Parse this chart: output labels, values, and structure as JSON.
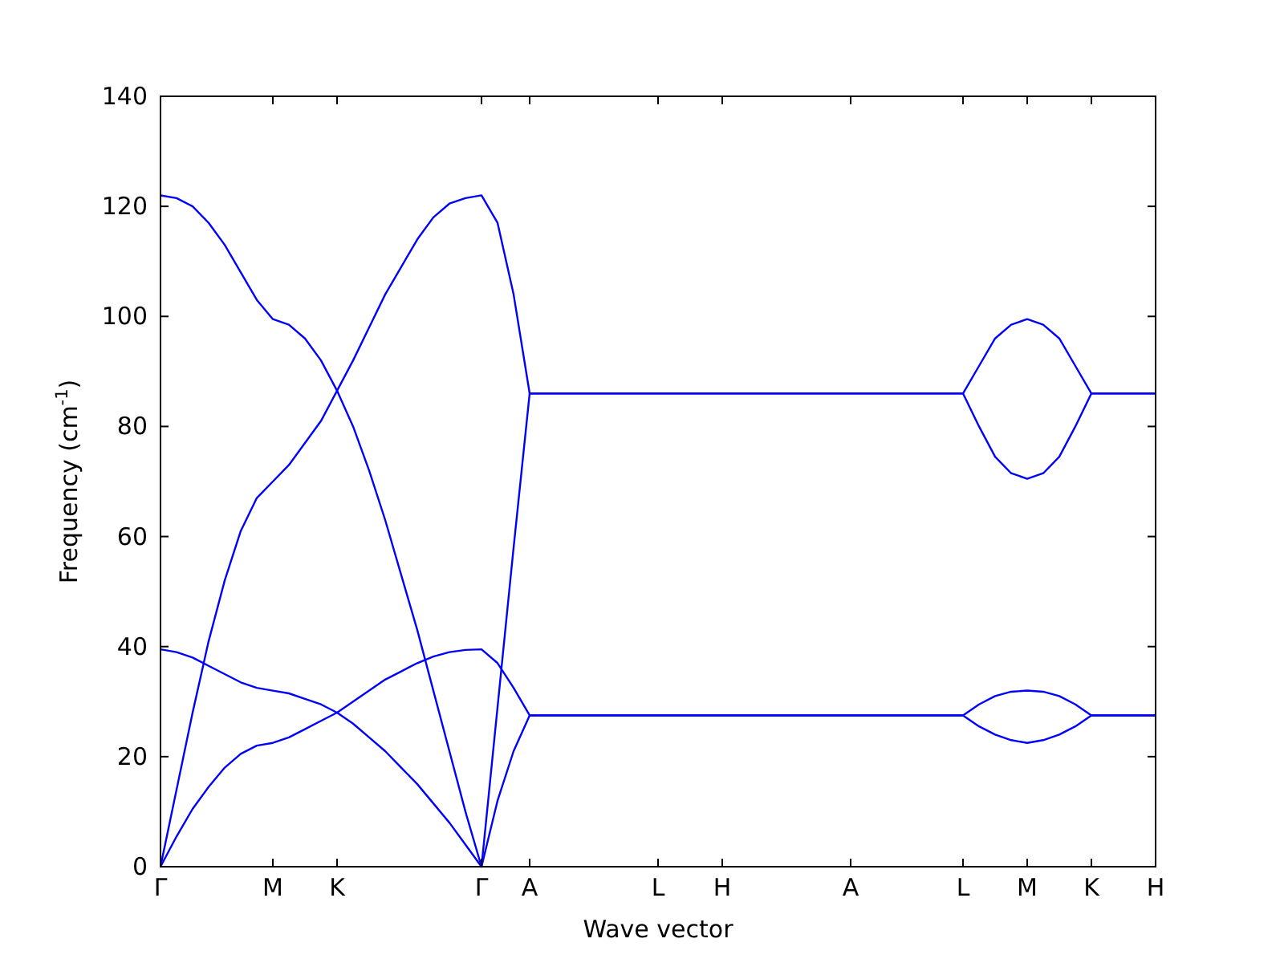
{
  "chart_data": {
    "type": "line",
    "xlabel": "Wave vector",
    "ylabel": "Frequency (cm$^{-1}$)",
    "ylim": [
      0,
      140
    ],
    "yticks": [
      0,
      20,
      40,
      60,
      80,
      100,
      120,
      140
    ],
    "categories": [
      "Γ",
      null,
      null,
      null,
      null,
      null,
      null,
      "M",
      null,
      null,
      null,
      "K",
      null,
      null,
      null,
      null,
      null,
      null,
      null,
      null,
      "Γ",
      null,
      null,
      "A",
      null,
      null,
      null,
      null,
      null,
      null,
      null,
      "L",
      null,
      null,
      null,
      "H",
      null,
      null,
      null,
      null,
      null,
      null,
      null,
      "A",
      null,
      null,
      null,
      null,
      null,
      null,
      "L",
      null,
      null,
      null,
      "M",
      null,
      null,
      null,
      "K",
      null,
      null,
      null,
      "H"
    ],
    "series": [
      {
        "color": "#0000ff",
        "values": [
          122,
          121.5,
          120,
          117,
          113,
          108,
          103,
          99.5,
          98.5,
          96,
          92,
          86.5,
          80,
          72,
          63,
          53,
          43,
          32,
          21,
          10,
          0,
          29,
          58,
          86,
          86,
          86,
          86,
          86,
          86,
          86,
          86,
          86,
          86,
          86,
          86,
          86,
          86,
          86,
          86,
          86,
          86,
          86,
          86,
          86,
          86,
          86,
          86,
          86,
          86,
          86,
          86,
          91,
          96,
          98.5,
          99.5,
          98.5,
          96,
          91,
          86,
          86,
          86,
          86,
          86
        ]
      },
      {
        "color": "#0000ff",
        "values": [
          0,
          14,
          28,
          41,
          52,
          61,
          67,
          70,
          73,
          77,
          81,
          86.5,
          92,
          98,
          104,
          109,
          114,
          118,
          120.5,
          121.5,
          122,
          117,
          104,
          86,
          86,
          86,
          86,
          86,
          86,
          86,
          86,
          86,
          86,
          86,
          86,
          86,
          86,
          86,
          86,
          86,
          86,
          86,
          86,
          86,
          86,
          86,
          86,
          86,
          86,
          86,
          86,
          80,
          74.5,
          71.5,
          70.5,
          71.5,
          74.5,
          80,
          86,
          86,
          86,
          86,
          86
        ]
      },
      {
        "color": "#0000ff",
        "values": [
          39.5,
          39,
          38,
          36.5,
          35,
          33.5,
          32.5,
          32,
          31.5,
          30.5,
          29.5,
          28,
          26,
          23.5,
          21,
          18,
          15,
          11.5,
          8,
          4,
          0,
          12,
          21,
          27.5,
          27.5,
          27.5,
          27.5,
          27.5,
          27.5,
          27.5,
          27.5,
          27.5,
          27.5,
          27.5,
          27.5,
          27.5,
          27.5,
          27.5,
          27.5,
          27.5,
          27.5,
          27.5,
          27.5,
          27.5,
          27.5,
          27.5,
          27.5,
          27.5,
          27.5,
          27.5,
          27.5,
          29.5,
          31,
          31.8,
          32,
          31.8,
          31,
          29.5,
          27.5,
          27.5,
          27.5,
          27.5,
          27.5
        ]
      },
      {
        "color": "#0000ff",
        "values": [
          0,
          5.5,
          10.5,
          14.5,
          18,
          20.5,
          22,
          22.5,
          23.5,
          25,
          26.5,
          28,
          30,
          32,
          34,
          35.5,
          37,
          38.2,
          39,
          39.4,
          39.5,
          37,
          32.5,
          27.5,
          27.5,
          27.5,
          27.5,
          27.5,
          27.5,
          27.5,
          27.5,
          27.5,
          27.5,
          27.5,
          27.5,
          27.5,
          27.5,
          27.5,
          27.5,
          27.5,
          27.5,
          27.5,
          27.5,
          27.5,
          27.5,
          27.5,
          27.5,
          27.5,
          27.5,
          27.5,
          27.5,
          25.5,
          24,
          23,
          22.5,
          23,
          24,
          25.5,
          27.5,
          27.5,
          27.5,
          27.5,
          27.5
        ]
      }
    ],
    "grid": false,
    "marker": "none",
    "line_style": "solid"
  }
}
